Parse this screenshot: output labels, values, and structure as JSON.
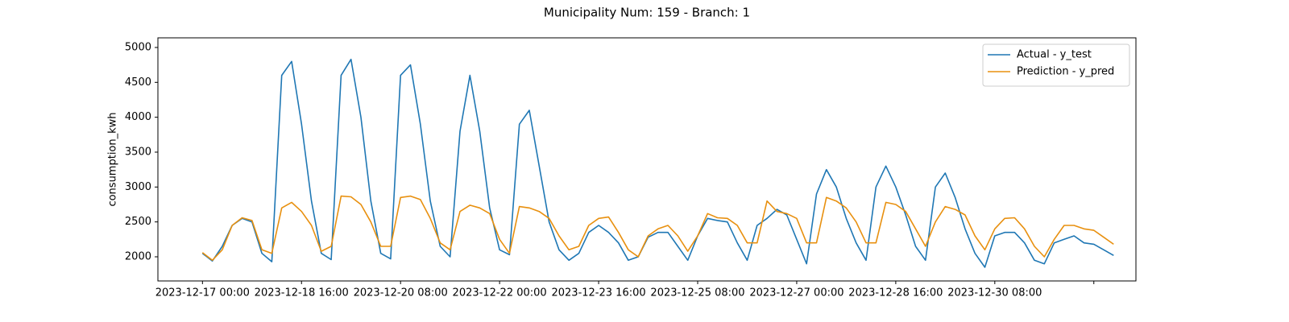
{
  "chart_data": {
    "type": "line",
    "title": "Municipality Num: 159 - Branch: 1",
    "y_label": "consumption_kwh",
    "x": [
      "2023-12-17 00:00",
      "2023-12-17 04:00",
      "2023-12-17 08:00",
      "2023-12-17 12:00",
      "2023-12-17 16:00",
      "2023-12-17 20:00",
      "2023-12-18 00:00",
      "2023-12-18 04:00",
      "2023-12-18 08:00",
      "2023-12-18 12:00",
      "2023-12-18 16:00",
      "2023-12-18 20:00",
      "2023-12-19 00:00",
      "2023-12-19 04:00",
      "2023-12-19 08:00",
      "2023-12-19 12:00",
      "2023-12-19 16:00",
      "2023-12-19 20:00",
      "2023-12-20 00:00",
      "2023-12-20 04:00",
      "2023-12-20 08:00",
      "2023-12-20 12:00",
      "2023-12-20 16:00",
      "2023-12-20 20:00",
      "2023-12-21 00:00",
      "2023-12-21 04:00",
      "2023-12-21 08:00",
      "2023-12-21 12:00",
      "2023-12-21 16:00",
      "2023-12-21 20:00",
      "2023-12-22 00:00",
      "2023-12-22 04:00",
      "2023-12-22 08:00",
      "2023-12-22 12:00",
      "2023-12-22 16:00",
      "2023-12-22 20:00",
      "2023-12-23 00:00",
      "2023-12-23 04:00",
      "2023-12-23 08:00",
      "2023-12-23 12:00",
      "2023-12-23 16:00",
      "2023-12-23 20:00",
      "2023-12-24 00:00",
      "2023-12-24 04:00",
      "2023-12-24 08:00",
      "2023-12-24 12:00",
      "2023-12-24 16:00",
      "2023-12-24 20:00",
      "2023-12-25 00:00",
      "2023-12-25 04:00",
      "2023-12-25 08:00",
      "2023-12-25 12:00",
      "2023-12-25 16:00",
      "2023-12-25 20:00",
      "2023-12-26 00:00",
      "2023-12-26 04:00",
      "2023-12-26 08:00",
      "2023-12-26 12:00",
      "2023-12-26 16:00",
      "2023-12-26 20:00",
      "2023-12-27 00:00",
      "2023-12-27 04:00",
      "2023-12-27 08:00",
      "2023-12-27 12:00",
      "2023-12-27 16:00",
      "2023-12-27 20:00",
      "2023-12-28 00:00",
      "2023-12-28 04:00",
      "2023-12-28 08:00",
      "2023-12-28 12:00",
      "2023-12-28 16:00",
      "2023-12-28 20:00",
      "2023-12-29 00:00",
      "2023-12-29 04:00",
      "2023-12-29 08:00",
      "2023-12-29 12:00",
      "2023-12-29 16:00",
      "2023-12-29 20:00",
      "2023-12-30 00:00",
      "2023-12-30 04:00",
      "2023-12-30 08:00",
      "2023-12-30 12:00",
      "2023-12-30 16:00",
      "2023-12-30 20:00",
      "2023-12-31 00:00",
      "2023-12-31 04:00",
      "2023-12-31 08:00",
      "2023-12-31 12:00",
      "2023-12-31 16:00",
      "2023-12-31 20:00",
      "2024-01-01 00:00",
      "2024-01-01 04:00",
      "2024-01-01 08:00"
    ],
    "series": [
      {
        "name": "Actual - y_test",
        "color": "#1f77b4",
        "values": [
          2050,
          1940,
          2150,
          2450,
          2550,
          2500,
          2050,
          1930,
          4600,
          4800,
          3900,
          2800,
          2050,
          1960,
          4600,
          4830,
          4000,
          2800,
          2050,
          1970,
          4600,
          4750,
          3900,
          2800,
          2150,
          2000,
          3800,
          4600,
          3800,
          2700,
          2100,
          2030,
          3900,
          4100,
          3300,
          2500,
          2100,
          1950,
          2050,
          2350,
          2450,
          2350,
          2200,
          1950,
          2000,
          2280,
          2350,
          2350,
          2150,
          1950,
          2300,
          2550,
          2520,
          2500,
          2200,
          1950,
          2450,
          2550,
          2680,
          2600,
          2250,
          1900,
          2900,
          3250,
          3000,
          2550,
          2200,
          1950,
          3000,
          3300,
          3000,
          2600,
          2150,
          1950,
          3000,
          3200,
          2850,
          2400,
          2050,
          1850,
          2300,
          2350,
          2350,
          2200,
          1950,
          1900,
          2200,
          2250,
          2300,
          2200,
          2180,
          2100,
          2020
        ]
      },
      {
        "name": "Prediction - y_pred",
        "color": "#e8900f",
        "values": [
          2060,
          1950,
          2100,
          2450,
          2560,
          2520,
          2100,
          2050,
          2700,
          2780,
          2650,
          2450,
          2080,
          2150,
          2870,
          2860,
          2750,
          2500,
          2150,
          2150,
          2850,
          2870,
          2820,
          2550,
          2200,
          2100,
          2650,
          2740,
          2700,
          2620,
          2250,
          2050,
          2720,
          2700,
          2650,
          2550,
          2300,
          2100,
          2150,
          2450,
          2550,
          2570,
          2350,
          2100,
          2000,
          2300,
          2400,
          2450,
          2300,
          2080,
          2300,
          2620,
          2560,
          2550,
          2450,
          2200,
          2200,
          2800,
          2650,
          2620,
          2550,
          2200,
          2200,
          2850,
          2800,
          2700,
          2500,
          2200,
          2200,
          2780,
          2750,
          2650,
          2400,
          2150,
          2500,
          2720,
          2680,
          2600,
          2300,
          2100,
          2400,
          2550,
          2560,
          2400,
          2150,
          2000,
          2250,
          2450,
          2450,
          2400,
          2380,
          2280,
          2180
        ]
      }
    ],
    "xlim": [
      "2023-12-16 06:00",
      "2024-01-01 17:00"
    ],
    "xticks": [
      "2023-12-17 00:00",
      "2023-12-18 16:00",
      "2023-12-20 08:00",
      "2023-12-22 00:00",
      "2023-12-23 16:00",
      "2023-12-25 08:00",
      "2023-12-27 00:00",
      "2023-12-28 16:00",
      "2023-12-30 08:00",
      {
        "value": "2024-01-01 00:00",
        "label": null
      }
    ],
    "ylim": [
      1654,
      5138
    ],
    "yticks": [
      2000,
      2500,
      3000,
      3500,
      4000,
      4500,
      5000
    ],
    "grid": false,
    "legend": "upper right"
  }
}
